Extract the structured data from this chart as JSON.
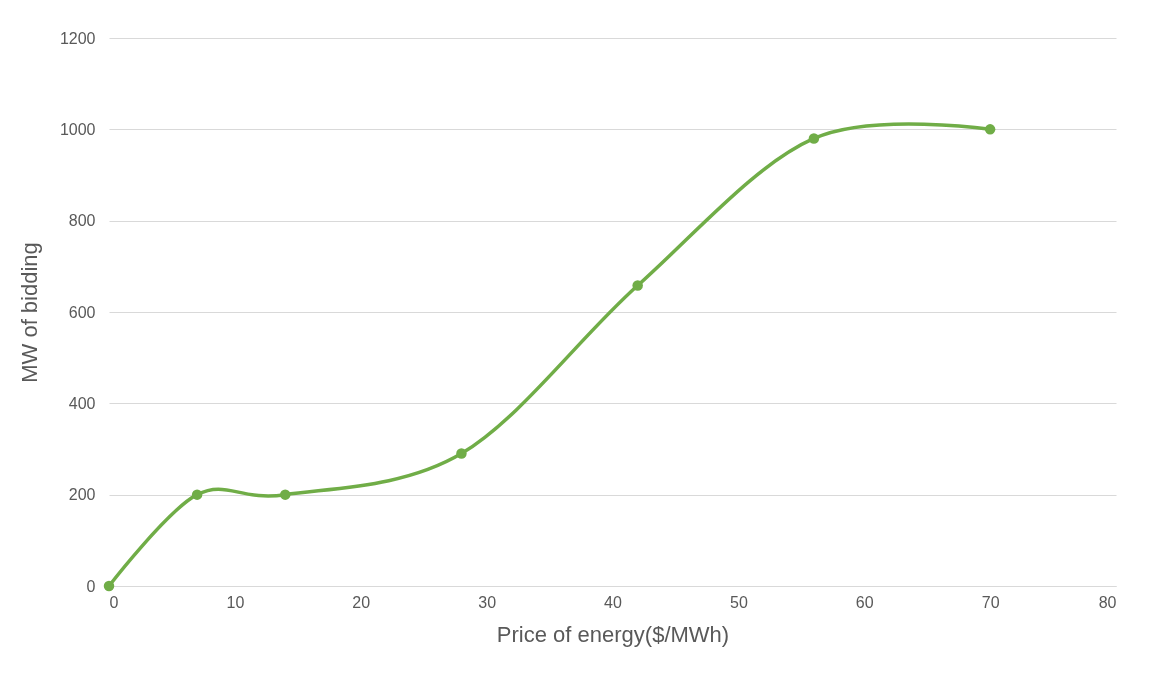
{
  "chart_data": {
    "type": "line",
    "xlabel": "Price of energy($/MWh)",
    "ylabel": "MW of bidding",
    "x": [
      0,
      7,
      14,
      28,
      42,
      56,
      70
    ],
    "series": [
      {
        "color": "#70ad47",
        "values": [
          0,
          200,
          200,
          290,
          658,
          980,
          1000
        ]
      }
    ],
    "xlim": [
      0,
      80
    ],
    "xticks": [
      0,
      10,
      20,
      30,
      40,
      50,
      60,
      70,
      80
    ],
    "ylim": [
      0,
      1200
    ],
    "yticks": [
      0,
      200,
      400,
      600,
      800,
      1000,
      1200
    ],
    "grid": "y",
    "marker": "circle",
    "line_style": "solid"
  }
}
